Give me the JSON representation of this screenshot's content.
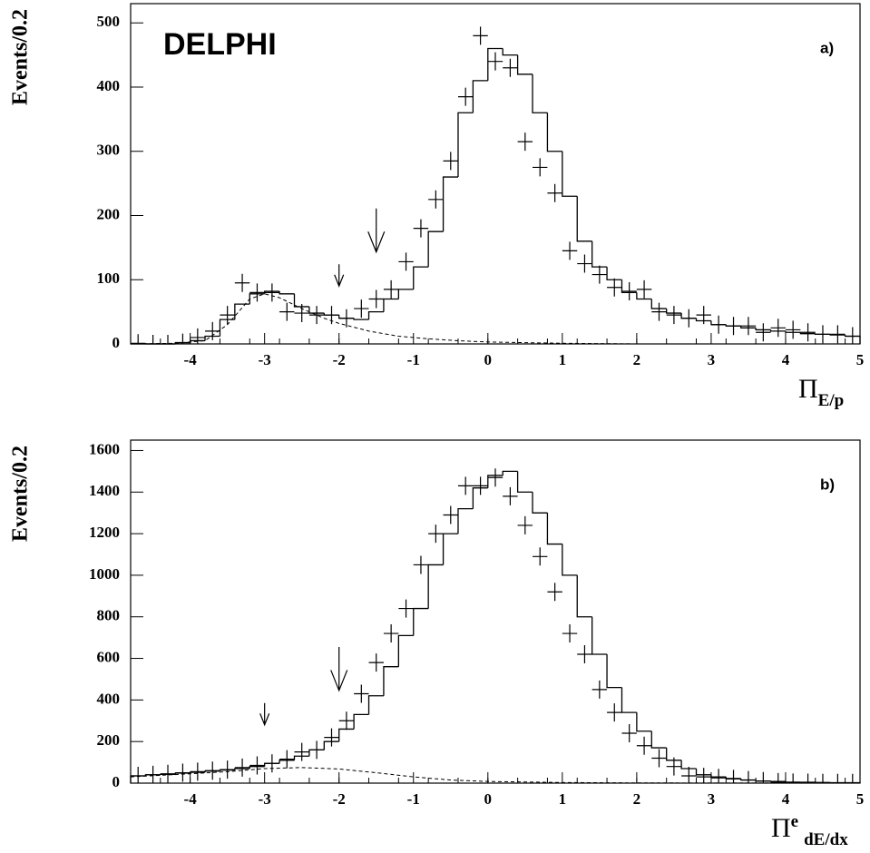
{
  "chart_data": [
    {
      "type": "histogram",
      "annotation": "DELPHI",
      "label": "a)",
      "ylabel": "Events/0.2",
      "xlabel": "Π",
      "xlabel_sub": "E/p",
      "bins": [
        -4.8,
        -4.6,
        -4.4,
        -4.2,
        -4,
        -3.8,
        -3.6,
        -3.4,
        -3.2,
        -3,
        -2.8,
        -2.6,
        -2.4,
        -2.2,
        -2,
        -1.8,
        -1.6,
        -1.4,
        -1.2,
        -1,
        -0.8,
        -0.6,
        -0.4,
        -0.2,
        0,
        0.2,
        0.4,
        0.6,
        0.8,
        1,
        1.2,
        1.4,
        1.6,
        1.8,
        2,
        2.2,
        2.4,
        2.6,
        2.8,
        3,
        3.2,
        3.4,
        3.6,
        3.8,
        4,
        4.2,
        4.4,
        4.6,
        4.8,
        5
      ],
      "values": [
        0,
        0,
        0,
        2,
        5,
        12,
        38,
        62,
        78,
        82,
        78,
        58,
        48,
        45,
        40,
        38,
        50,
        70,
        85,
        120,
        175,
        260,
        360,
        410,
        460,
        450,
        420,
        360,
        300,
        230,
        160,
        120,
        100,
        80,
        70,
        55,
        48,
        40,
        36,
        30,
        28,
        25,
        22,
        20,
        18,
        16,
        15,
        14,
        12
      ],
      "points": [
        1,
        0,
        0,
        2,
        10,
        20,
        45,
        95,
        80,
        80,
        50,
        48,
        45,
        45,
        40,
        55,
        70,
        85,
        128,
        180,
        225,
        285,
        385,
        480,
        440,
        430,
        315,
        275,
        235,
        145,
        125,
        108,
        88,
        82,
        85,
        50,
        45,
        40,
        45,
        30,
        28,
        28,
        18,
        25,
        22,
        18,
        15,
        15,
        12
      ],
      "background": {
        "x": [
          -4.8,
          -4.2,
          -3.8,
          -3.5,
          -3.2,
          -3,
          -2.8,
          -2.5,
          -2.2,
          -2,
          -1.6,
          -1.2,
          -0.8,
          -0.4,
          0,
          1,
          2,
          3,
          4,
          5
        ],
        "y": [
          0,
          1,
          5,
          30,
          70,
          78,
          72,
          55,
          40,
          32,
          20,
          12,
          8,
          5,
          3,
          1,
          0,
          0,
          0,
          0
        ]
      },
      "arrows": [
        -2,
        -1.5
      ],
      "xlim": [
        -4.8,
        5
      ],
      "ylim": [
        0,
        530
      ],
      "xticks": [
        -4,
        -3,
        -2,
        -1,
        0,
        1,
        2,
        3,
        4,
        5
      ],
      "yticks": [
        0,
        100,
        200,
        300,
        400,
        500
      ]
    },
    {
      "type": "histogram",
      "label": "b)",
      "ylabel": "Events/0.2",
      "xlabel": "Π",
      "xlabel_sup": "e",
      "xlabel_sub": "dE/dx",
      "bins": [
        -4.8,
        -4.6,
        -4.4,
        -4.2,
        -4,
        -3.8,
        -3.6,
        -3.4,
        -3.2,
        -3,
        -2.8,
        -2.6,
        -2.4,
        -2.2,
        -2,
        -1.8,
        -1.6,
        -1.4,
        -1.2,
        -1,
        -0.8,
        -0.6,
        -0.4,
        -0.2,
        0,
        0.2,
        0.4,
        0.6,
        0.8,
        1,
        1.2,
        1.4,
        1.6,
        1.8,
        2,
        2.2,
        2.4,
        2.6,
        2.8,
        3,
        3.2,
        3.4,
        3.6,
        3.8,
        4,
        4.2,
        4.4,
        4.6,
        4.8,
        5
      ],
      "values": [
        35,
        40,
        42,
        48,
        52,
        58,
        63,
        70,
        80,
        95,
        110,
        130,
        160,
        200,
        260,
        330,
        420,
        560,
        710,
        840,
        1050,
        1200,
        1320,
        1420,
        1480,
        1500,
        1400,
        1300,
        1150,
        1000,
        800,
        620,
        460,
        340,
        250,
        170,
        110,
        70,
        40,
        30,
        22,
        15,
        10,
        8,
        5,
        4,
        3,
        2,
        2
      ],
      "points": [
        35,
        40,
        45,
        50,
        55,
        60,
        65,
        75,
        85,
        95,
        115,
        150,
        160,
        220,
        300,
        430,
        580,
        720,
        840,
        1050,
        1200,
        1290,
        1430,
        1430,
        1470,
        1380,
        1240,
        1090,
        920,
        720,
        620,
        450,
        340,
        240,
        180,
        120,
        80,
        35,
        30,
        25,
        20,
        15,
        10,
        5,
        3,
        2,
        1,
        1,
        1
      ],
      "background": {
        "x": [
          -4.8,
          -4,
          -3.5,
          -3,
          -2.5,
          -2,
          -1.5,
          -1,
          -0.5,
          0,
          1,
          2,
          5
        ],
        "y": [
          30,
          45,
          55,
          70,
          75,
          68,
          50,
          30,
          15,
          8,
          3,
          1,
          0
        ]
      },
      "arrows": [
        -3,
        -2
      ],
      "xlim": [
        -4.8,
        5
      ],
      "ylim": [
        0,
        1650
      ],
      "xticks": [
        -4,
        -3,
        -2,
        -1,
        0,
        1,
        2,
        3,
        4,
        5
      ],
      "yticks": [
        0,
        200,
        400,
        600,
        800,
        1000,
        1200,
        1400,
        1600
      ]
    }
  ]
}
